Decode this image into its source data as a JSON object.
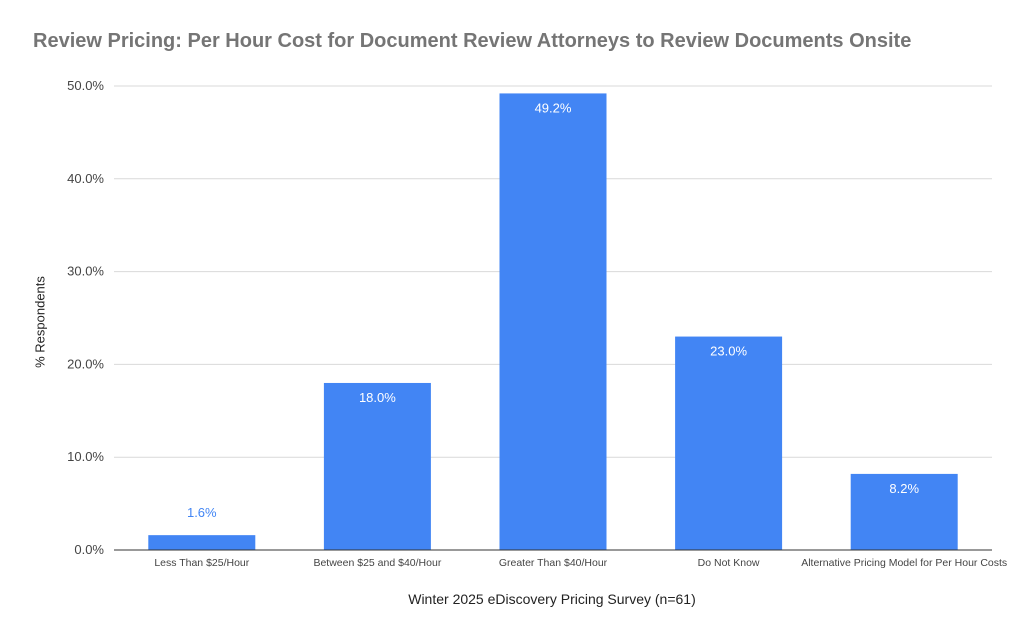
{
  "chart_data": {
    "type": "bar",
    "title": "Review Pricing: Per Hour Cost for Document Review Attorneys to Review Documents Onsite",
    "xlabel": "Winter 2025 eDiscovery Pricing Survey (n=61)",
    "ylabel": "% Respondents",
    "categories": [
      "Less Than $25/Hour",
      "Between $25 and $40/Hour",
      "Greater Than $40/Hour",
      "Do Not Know",
      "Alternative Pricing Model for Per Hour Costs"
    ],
    "values": [
      1.6,
      18.0,
      49.2,
      23.0,
      8.2
    ],
    "data_labels": [
      "1.6%",
      "18.0%",
      "49.2%",
      "23.0%",
      "8.2%"
    ],
    "ylim": [
      0,
      50
    ],
    "yticks": [
      0,
      10,
      20,
      30,
      40,
      50
    ],
    "ytick_labels": [
      "0.0%",
      "10.0%",
      "20.0%",
      "30.0%",
      "40.0%",
      "50.0%"
    ],
    "grid": true,
    "colors": {
      "bar": "#4285f4",
      "label_inside": "#ffffff",
      "label_outside": "#4285f4",
      "grid": "#d9d9d9",
      "axis": "#333333"
    }
  }
}
